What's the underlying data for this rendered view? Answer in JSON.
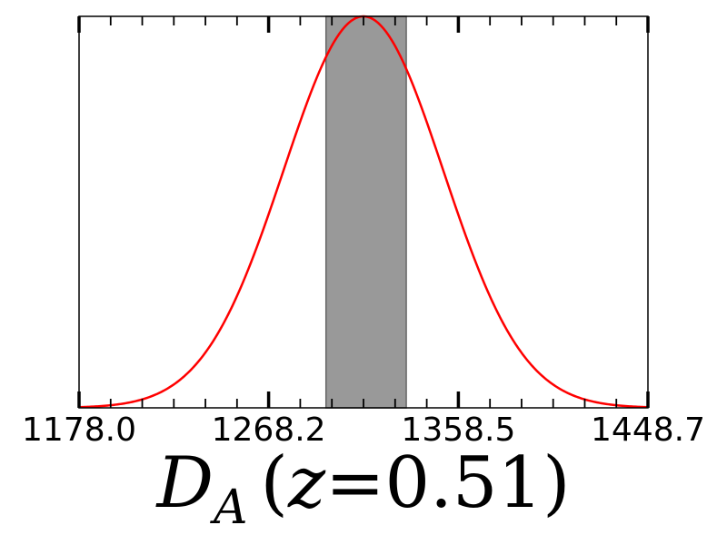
{
  "chart_data": {
    "type": "line",
    "title": "",
    "xlabel": {
      "symbol": "D",
      "subscript": "A",
      "open_paren": "(",
      "variable": "z",
      "equals": "=",
      "value": "0.51",
      "close_paren": ")"
    },
    "ylabel": "",
    "xlim": [
      1178.0,
      1448.7
    ],
    "ylim": [
      0,
      1
    ],
    "x_ticks": [
      1178.0,
      1268.2,
      1358.5,
      1448.7
    ],
    "x_tick_labels": [
      "1178.0",
      "1268.2",
      "1358.5",
      "1448.7"
    ],
    "y_ticks_shown": false,
    "grid": false,
    "series": [
      {
        "type": "gaussian",
        "mean": 1313.3,
        "sigma": 38.0,
        "peak": 1.0,
        "color": "#ff0000"
      }
    ],
    "shaded_band": {
      "x_range": [
        1295.5,
        1333.7
      ],
      "color": "#999999",
      "edge_color": "#666666"
    }
  }
}
